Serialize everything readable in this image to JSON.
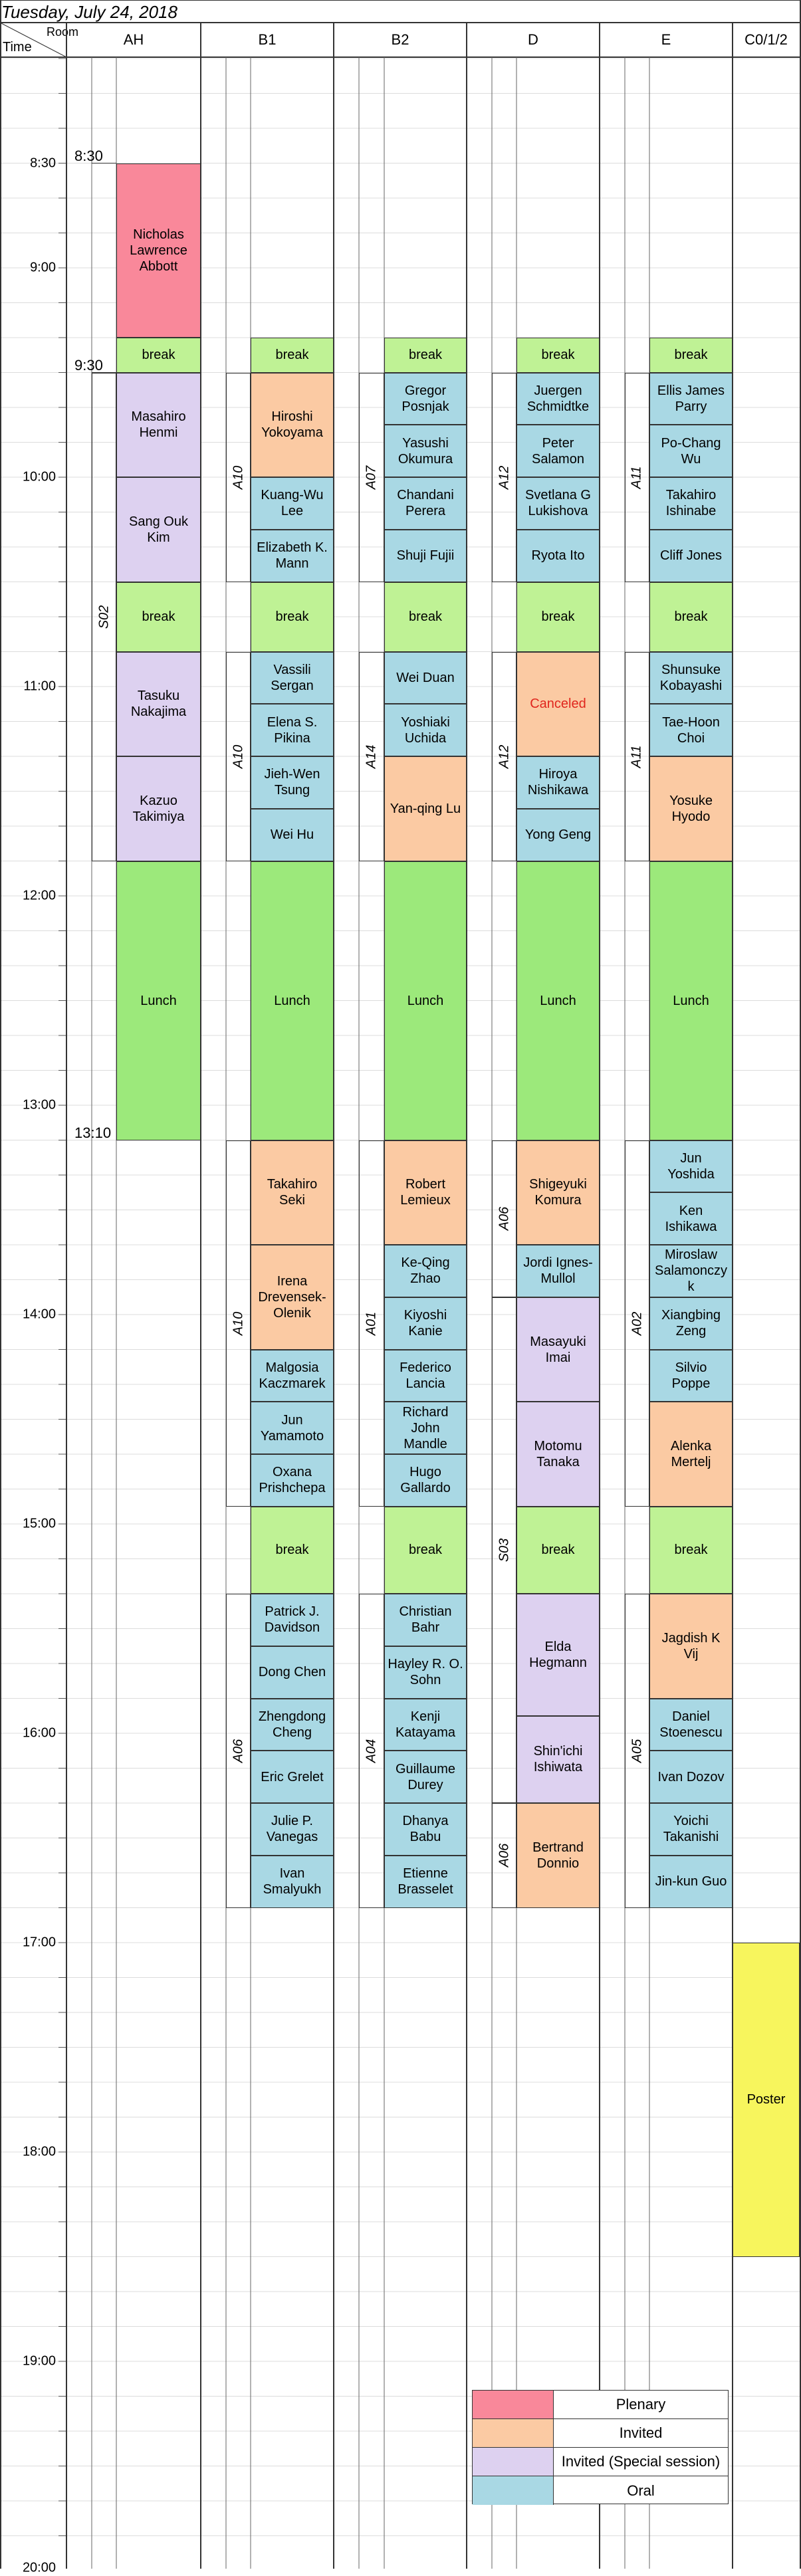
{
  "date": "Tuesday, July 24, 2018",
  "corner": {
    "room": "Room",
    "time": "Time"
  },
  "rooms": [
    "AH",
    "B1",
    "B2",
    "D",
    "E",
    "C0/1/2"
  ],
  "time_labels": [
    "8:30",
    "9:00",
    "10:00",
    "11:00",
    "12:00",
    "13:00",
    "14:00",
    "15:00",
    "16:00",
    "17:00",
    "18:00",
    "19:00",
    "20:00"
  ],
  "ah_marks": [
    "8:30",
    "9:30",
    "13:10"
  ],
  "sessions": {
    "ah": "S02",
    "b1_a": "A10",
    "b1_b": "A10",
    "b1_c": "A10",
    "b1_d": "A06",
    "b2_a": "A07",
    "b2_b": "A14",
    "b2_c": "A01",
    "b2_d": "A04",
    "d_a": "A12",
    "d_b": "A12",
    "d_c": "A06",
    "d_d": "S03",
    "d_e": "A06",
    "e_a": "A11",
    "e_b": "A11",
    "e_c": "A02",
    "e_d": "A05"
  },
  "blocks": [
    {
      "col": "AH",
      "start": "08:30",
      "end": "09:20",
      "type": "plenary",
      "text": "Nicholas\nLawrence\nAbbott"
    },
    {
      "col": "AH",
      "start": "09:20",
      "end": "09:30",
      "type": "brk",
      "text": "break"
    },
    {
      "col": "AH",
      "start": "09:30",
      "end": "10:00",
      "type": "special",
      "text": "Masahiro\nHenmi"
    },
    {
      "col": "AH",
      "start": "10:00",
      "end": "10:30",
      "type": "special",
      "text": "Sang Ouk\nKim"
    },
    {
      "col": "AH",
      "start": "10:30",
      "end": "10:50",
      "type": "brk",
      "text": "break"
    },
    {
      "col": "AH",
      "start": "10:50",
      "end": "11:20",
      "type": "special",
      "text": "Tasuku\nNakajima"
    },
    {
      "col": "AH",
      "start": "11:20",
      "end": "11:50",
      "type": "special",
      "text": "Kazuo\nTakimiya"
    },
    {
      "col": "AH",
      "start": "11:50",
      "end": "13:10",
      "type": "lunch",
      "text": "Lunch"
    },
    {
      "col": "B1",
      "start": "09:20",
      "end": "09:30",
      "type": "brk",
      "text": "break"
    },
    {
      "col": "B1",
      "start": "09:30",
      "end": "10:00",
      "type": "invited",
      "text": "Hiroshi\nYokoyama"
    },
    {
      "col": "B1",
      "start": "10:00",
      "end": "10:15",
      "type": "oral",
      "text": "Kuang-Wu\nLee"
    },
    {
      "col": "B1",
      "start": "10:15",
      "end": "10:30",
      "type": "oral",
      "text": "Elizabeth K.\nMann"
    },
    {
      "col": "B1",
      "start": "10:30",
      "end": "10:50",
      "type": "brk",
      "text": "break"
    },
    {
      "col": "B1",
      "start": "10:50",
      "end": "11:05",
      "type": "oral",
      "text": "Vassili\nSergan"
    },
    {
      "col": "B1",
      "start": "11:05",
      "end": "11:20",
      "type": "oral",
      "text": "Elena S.\nPikina"
    },
    {
      "col": "B1",
      "start": "11:20",
      "end": "11:35",
      "type": "oral",
      "text": "Jieh-Wen\nTsung"
    },
    {
      "col": "B1",
      "start": "11:35",
      "end": "11:50",
      "type": "oral",
      "text": "Wei Hu"
    },
    {
      "col": "B1",
      "start": "11:50",
      "end": "13:10",
      "type": "lunch",
      "text": "Lunch"
    },
    {
      "col": "B1",
      "start": "13:10",
      "end": "13:40",
      "type": "invited",
      "text": "Takahiro\nSeki"
    },
    {
      "col": "B1",
      "start": "13:40",
      "end": "14:10",
      "type": "invited",
      "text": "Irena\nDrevensek-\nOlenik"
    },
    {
      "col": "B1",
      "start": "14:10",
      "end": "14:25",
      "type": "oral",
      "text": "Malgosia\nKaczmarek"
    },
    {
      "col": "B1",
      "start": "14:25",
      "end": "14:40",
      "type": "oral",
      "text": "Jun\nYamamoto"
    },
    {
      "col": "B1",
      "start": "14:40",
      "end": "14:55",
      "type": "oral",
      "text": "Oxana\nPrishchepa"
    },
    {
      "col": "B1",
      "start": "14:55",
      "end": "15:20",
      "type": "brk",
      "text": "break"
    },
    {
      "col": "B1",
      "start": "15:20",
      "end": "15:35",
      "type": "oral",
      "text": "Patrick J.\nDavidson"
    },
    {
      "col": "B1",
      "start": "15:35",
      "end": "15:50",
      "type": "oral",
      "text": "Dong Chen"
    },
    {
      "col": "B1",
      "start": "15:50",
      "end": "16:05",
      "type": "oral",
      "text": "Zhengdong\nCheng"
    },
    {
      "col": "B1",
      "start": "16:05",
      "end": "16:20",
      "type": "oral",
      "text": "Eric Grelet"
    },
    {
      "col": "B1",
      "start": "16:20",
      "end": "16:35",
      "type": "oral",
      "text": "Julie P.\nVanegas"
    },
    {
      "col": "B1",
      "start": "16:35",
      "end": "16:50",
      "type": "oral",
      "text": "Ivan\nSmalyukh"
    },
    {
      "col": "B2",
      "start": "09:20",
      "end": "09:30",
      "type": "brk",
      "text": "break"
    },
    {
      "col": "B2",
      "start": "09:30",
      "end": "09:45",
      "type": "oral",
      "text": "Gregor\nPosnjak"
    },
    {
      "col": "B2",
      "start": "09:45",
      "end": "10:00",
      "type": "oral",
      "text": "Yasushi\nOkumura"
    },
    {
      "col": "B2",
      "start": "10:00",
      "end": "10:15",
      "type": "oral",
      "text": "Chandani\nPerera"
    },
    {
      "col": "B2",
      "start": "10:15",
      "end": "10:30",
      "type": "oral",
      "text": "Shuji Fujii"
    },
    {
      "col": "B2",
      "start": "10:30",
      "end": "10:50",
      "type": "brk",
      "text": "break"
    },
    {
      "col": "B2",
      "start": "10:50",
      "end": "11:05",
      "type": "oral",
      "text": "Wei Duan"
    },
    {
      "col": "B2",
      "start": "11:05",
      "end": "11:20",
      "type": "oral",
      "text": "Yoshiaki\nUchida"
    },
    {
      "col": "B2",
      "start": "11:20",
      "end": "11:50",
      "type": "invited",
      "text": "Yan-qing Lu"
    },
    {
      "col": "B2",
      "start": "11:50",
      "end": "13:10",
      "type": "lunch",
      "text": "Lunch"
    },
    {
      "col": "B2",
      "start": "13:10",
      "end": "13:40",
      "type": "invited",
      "text": "Robert\nLemieux"
    },
    {
      "col": "B2",
      "start": "13:40",
      "end": "13:55",
      "type": "oral",
      "text": "Ke-Qing\nZhao"
    },
    {
      "col": "B2",
      "start": "13:55",
      "end": "14:10",
      "type": "oral",
      "text": "Kiyoshi\nKanie"
    },
    {
      "col": "B2",
      "start": "14:10",
      "end": "14:25",
      "type": "oral",
      "text": "Federico\nLancia"
    },
    {
      "col": "B2",
      "start": "14:25",
      "end": "14:40",
      "type": "oral",
      "text": "Richard\nJohn\nMandle"
    },
    {
      "col": "B2",
      "start": "14:40",
      "end": "14:55",
      "type": "oral",
      "text": "Hugo\nGallardo"
    },
    {
      "col": "B2",
      "start": "14:55",
      "end": "15:20",
      "type": "brk",
      "text": "break"
    },
    {
      "col": "B2",
      "start": "15:20",
      "end": "15:35",
      "type": "oral",
      "text": "Christian\nBahr"
    },
    {
      "col": "B2",
      "start": "15:35",
      "end": "15:50",
      "type": "oral",
      "text": "Hayley R. O.\nSohn"
    },
    {
      "col": "B2",
      "start": "15:50",
      "end": "16:05",
      "type": "oral",
      "text": "Kenji\nKatayama"
    },
    {
      "col": "B2",
      "start": "16:05",
      "end": "16:20",
      "type": "oral",
      "text": "Guillaume\nDurey"
    },
    {
      "col": "B2",
      "start": "16:20",
      "end": "16:35",
      "type": "oral",
      "text": "Dhanya\nBabu"
    },
    {
      "col": "B2",
      "start": "16:35",
      "end": "16:50",
      "type": "oral",
      "text": "Etienne\nBrasselet"
    },
    {
      "col": "D",
      "start": "09:20",
      "end": "09:30",
      "type": "brk",
      "text": "break"
    },
    {
      "col": "D",
      "start": "09:30",
      "end": "09:45",
      "type": "oral",
      "text": "Juergen\nSchmidtke"
    },
    {
      "col": "D",
      "start": "09:45",
      "end": "10:00",
      "type": "oral",
      "text": "Peter\nSalamon"
    },
    {
      "col": "D",
      "start": "10:00",
      "end": "10:15",
      "type": "oral",
      "text": "Svetlana G\nLukishova"
    },
    {
      "col": "D",
      "start": "10:15",
      "end": "10:30",
      "type": "oral",
      "text": "Ryota Ito"
    },
    {
      "col": "D",
      "start": "10:30",
      "end": "10:50",
      "type": "brk",
      "text": "break"
    },
    {
      "col": "D",
      "start": "10:50",
      "end": "11:20",
      "type": "invited",
      "text": "Canceled",
      "cls": "canceled"
    },
    {
      "col": "D",
      "start": "11:20",
      "end": "11:35",
      "type": "oral",
      "text": "Hiroya\nNishikawa"
    },
    {
      "col": "D",
      "start": "11:35",
      "end": "11:50",
      "type": "oral",
      "text": "Yong Geng"
    },
    {
      "col": "D",
      "start": "11:50",
      "end": "13:10",
      "type": "lunch",
      "text": "Lunch"
    },
    {
      "col": "D",
      "start": "13:10",
      "end": "13:40",
      "type": "invited",
      "text": "Shigeyuki\nKomura"
    },
    {
      "col": "D",
      "start": "13:40",
      "end": "13:55",
      "type": "oral",
      "text": "Jordi Ignes-\nMullol"
    },
    {
      "col": "D",
      "start": "13:55",
      "end": "14:25",
      "type": "special",
      "text": "Masayuki\nImai"
    },
    {
      "col": "D",
      "start": "14:25",
      "end": "14:55",
      "type": "special",
      "text": "Motomu\nTanaka"
    },
    {
      "col": "D",
      "start": "14:55",
      "end": "15:20",
      "type": "brk",
      "text": "break"
    },
    {
      "col": "D",
      "start": "15:20",
      "end": "15:55",
      "type": "special",
      "text": "Elda\nHegmann"
    },
    {
      "col": "D",
      "start": "15:55",
      "end": "16:20",
      "type": "special",
      "text": "Shin'ichi\nIshiwata"
    },
    {
      "col": "D",
      "start": "16:20",
      "end": "16:50",
      "type": "invited",
      "text": "Bertrand\nDonnio"
    },
    {
      "col": "E",
      "start": "09:20",
      "end": "09:30",
      "type": "brk",
      "text": "break"
    },
    {
      "col": "E",
      "start": "09:30",
      "end": "09:45",
      "type": "oral",
      "text": "Ellis James\nParry"
    },
    {
      "col": "E",
      "start": "09:45",
      "end": "10:00",
      "type": "oral",
      "text": "Po-Chang\nWu"
    },
    {
      "col": "E",
      "start": "10:00",
      "end": "10:15",
      "type": "oral",
      "text": "Takahiro\nIshinabe"
    },
    {
      "col": "E",
      "start": "10:15",
      "end": "10:30",
      "type": "oral",
      "text": "Cliff Jones"
    },
    {
      "col": "E",
      "start": "10:30",
      "end": "10:50",
      "type": "brk",
      "text": "break"
    },
    {
      "col": "E",
      "start": "10:50",
      "end": "11:05",
      "type": "oral",
      "text": "Shunsuke\nKobayashi"
    },
    {
      "col": "E",
      "start": "11:05",
      "end": "11:20",
      "type": "oral",
      "text": "Tae-Hoon\nChoi"
    },
    {
      "col": "E",
      "start": "11:20",
      "end": "11:50",
      "type": "invited",
      "text": "Yosuke\nHyodo"
    },
    {
      "col": "E",
      "start": "11:50",
      "end": "13:10",
      "type": "lunch",
      "text": "Lunch"
    },
    {
      "col": "E",
      "start": "13:10",
      "end": "13:25",
      "type": "oral",
      "text": "Jun\nYoshida"
    },
    {
      "col": "E",
      "start": "13:25",
      "end": "13:40",
      "type": "oral",
      "text": "Ken\nIshikawa"
    },
    {
      "col": "E",
      "start": "13:40",
      "end": "13:55",
      "type": "oral",
      "text": "Miroslaw\nSalamonczy\nk"
    },
    {
      "col": "E",
      "start": "13:55",
      "end": "14:10",
      "type": "oral",
      "text": "Xiangbing\nZeng"
    },
    {
      "col": "E",
      "start": "14:10",
      "end": "14:25",
      "type": "oral",
      "text": "Silvio\nPoppe"
    },
    {
      "col": "E",
      "start": "14:25",
      "end": "14:55",
      "type": "invited",
      "text": "Alenka\nMertelj"
    },
    {
      "col": "E",
      "start": "14:55",
      "end": "15:20",
      "type": "brk",
      "text": "break"
    },
    {
      "col": "E",
      "start": "15:20",
      "end": "15:50",
      "type": "invited",
      "text": "Jagdish K\nVij"
    },
    {
      "col": "E",
      "start": "15:50",
      "end": "16:05",
      "type": "oral",
      "text": "Daniel\nStoenescu"
    },
    {
      "col": "E",
      "start": "16:05",
      "end": "16:20",
      "type": "oral",
      "text": "Ivan Dozov"
    },
    {
      "col": "E",
      "start": "16:20",
      "end": "16:35",
      "type": "oral",
      "text": "Yoichi\nTakanishi"
    },
    {
      "col": "E",
      "start": "16:35",
      "end": "16:50",
      "type": "oral",
      "text": "Jin-kun Guo"
    },
    {
      "col": "C",
      "start": "17:00",
      "end": "18:30",
      "type": "poster",
      "text": "Poster"
    }
  ],
  "legend": [
    {
      "label": "Plenary",
      "color": "#f9889a"
    },
    {
      "label": "Invited",
      "color": "#fbcaa3"
    },
    {
      "label": "Invited (Special session)",
      "color": "#ddd1f0"
    },
    {
      "label": "Oral",
      "color": "#a9d8e4"
    }
  ]
}
